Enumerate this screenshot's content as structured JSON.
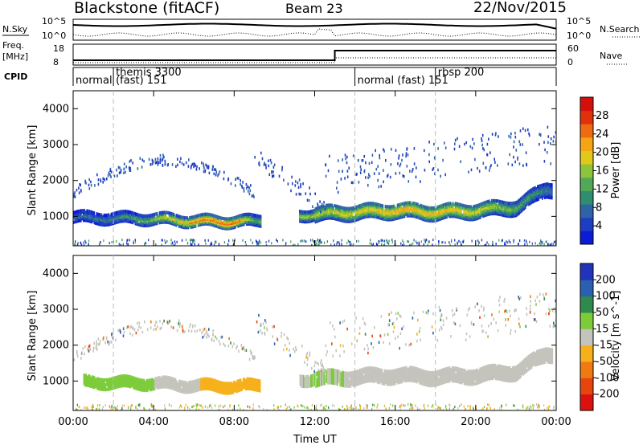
{
  "header": {
    "site": "Blackstone (fitACF)",
    "beam": "Beam 23",
    "date": "22/Nov/2015"
  },
  "top_panels": {
    "nsky_label": "N.Sky",
    "nsearch_label": "N.Search",
    "freq_label_1": "Freq.",
    "freq_label_2": "[MHz]",
    "nave_label": "Nave",
    "cpid_label": "CPID",
    "left_tick_top": "10^5",
    "left_tick_bottom": "10^0",
    "right_tick_top": "10^5",
    "right_tick_bottom": "10^0",
    "freq_tick_top": "18",
    "freq_tick_bottom": "8",
    "nave_tick_top": "60",
    "nave_tick_bottom": "0",
    "cpid_segments": [
      {
        "start_hour": 0.0,
        "line1": "",
        "line2": "normal"
      },
      {
        "start_hour": 2.0,
        "line1": "themis 3300",
        "line2": "(fast) 151"
      },
      {
        "start_hour": 14.0,
        "line1": "",
        "line2": "normal (fast) 151"
      },
      {
        "start_hour": 18.0,
        "line1": "rbsp 200",
        "line2": ""
      }
    ],
    "freq_change_hour": 13.0
  },
  "chart_data": [
    {
      "type": "heatmap",
      "title": "",
      "ylabel": "Slant Range [km]",
      "xlabel": "",
      "xlim": [
        0,
        24
      ],
      "ylim": [
        180,
        4500
      ],
      "yticks": [
        1000,
        2000,
        3000,
        4000
      ],
      "colorbar": {
        "label": "Power [dB]",
        "ticks": [
          4,
          8,
          12,
          16,
          20,
          24,
          28
        ],
        "colors": [
          "#0b1bd6",
          "#1d3ec2",
          "#2e63a6",
          "#2f8e6e",
          "#53a857",
          "#8cc43a",
          "#e3c81c",
          "#f5a416",
          "#ef6b12",
          "#e0300c",
          "#d4100b"
        ]
      },
      "echo_band": [
        {
          "hour": 0.0,
          "range_km": 1000,
          "power_db": 8
        },
        {
          "hour": 2.0,
          "range_km": 980,
          "power_db": 10
        },
        {
          "hour": 4.0,
          "range_km": 960,
          "power_db": 16
        },
        {
          "hour": 6.0,
          "range_km": 900,
          "power_db": 24
        },
        {
          "hour": 8.0,
          "range_km": 880,
          "power_db": 26
        },
        {
          "hour": 9.0,
          "range_km": 900,
          "power_db": 14
        },
        {
          "hour": 12.0,
          "range_km": 1100,
          "power_db": 18
        },
        {
          "hour": 14.0,
          "range_km": 1150,
          "power_db": 20
        },
        {
          "hour": 16.0,
          "range_km": 1200,
          "power_db": 22
        },
        {
          "hour": 18.0,
          "range_km": 1150,
          "power_db": 22
        },
        {
          "hour": 20.0,
          "range_km": 1200,
          "power_db": 20
        },
        {
          "hour": 22.0,
          "range_km": 1300,
          "power_db": 14
        },
        {
          "hour": 23.5,
          "range_km": 1800,
          "power_db": 10
        }
      ]
    },
    {
      "type": "heatmap",
      "title": "",
      "ylabel": "Slant Range [km]",
      "xlabel": "Time UT",
      "xlim": [
        0,
        24
      ],
      "ylim": [
        180,
        4500
      ],
      "yticks": [
        1000,
        2000,
        3000,
        4000
      ],
      "xticks": [
        "00:00",
        "04:00",
        "08:00",
        "12:00",
        "16:00",
        "20:00",
        "00:00"
      ],
      "colorbar": {
        "label": "Velocity [m s^-1]",
        "ticks": [
          200,
          100,
          50,
          15,
          -15,
          -50,
          -100,
          -200
        ],
        "colors": [
          "#2233bb",
          "#2b5fb0",
          "#2f8a4e",
          "#7ccc3a",
          "#c4c4bc",
          "#f5b01a",
          "#ef7a12",
          "#e6450e",
          "#dd1010"
        ]
      },
      "echo_band": [
        {
          "hour": 0.5,
          "range_km": 1000,
          "velocity_ms": 30
        },
        {
          "hour": 3.0,
          "range_km": 980,
          "velocity_ms": 30
        },
        {
          "hour": 5.0,
          "range_km": 960,
          "velocity_ms": 0
        },
        {
          "hour": 7.5,
          "range_km": 900,
          "velocity_ms": -40
        },
        {
          "hour": 12.5,
          "range_km": 1100,
          "velocity_ms": 30
        },
        {
          "hour": 16.0,
          "range_km": 1200,
          "velocity_ms": 0
        },
        {
          "hour": 22.0,
          "range_km": 1300,
          "velocity_ms": 0
        }
      ]
    }
  ]
}
